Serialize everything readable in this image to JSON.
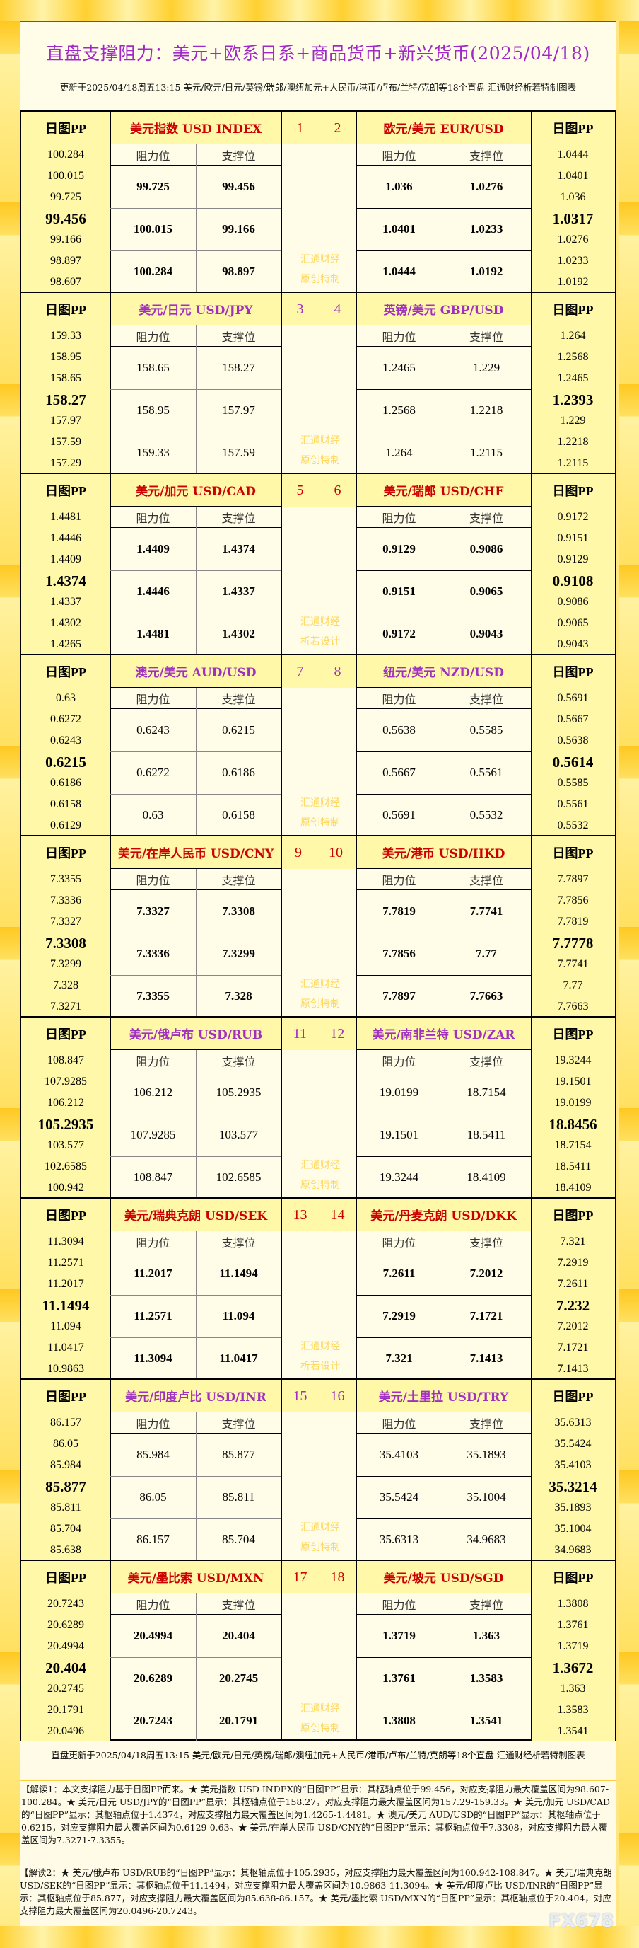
{
  "header": {
    "title": "直盘支撑阻力：美元+欧系日系+商品货币+新兴货币(2025/04/18)",
    "subtitle": "更新于2025/04/18周五13:15 美元/欧元/日元/英镑/瑞郎/澳纽加元+人民币/港币/卢布/兰特/克朗等18个直盘 汇通财经析若特制图表"
  },
  "labels": {
    "pp": "日图PP",
    "resistance": "阻力位",
    "support": "支撑位",
    "watermark_line1": "汇通财经"
  },
  "colors": {
    "odd_header": "#cc0000",
    "even_header": "#a030c0",
    "title": "#a028c8",
    "watermark": "#ffd860"
  },
  "blocks": [
    {
      "num_left": "1",
      "num_right": "2",
      "watermark_line2": "原创特制",
      "left": {
        "pair": "美元指数 USD INDEX",
        "pp": [
          "100.284",
          "100.015",
          "99.725",
          "99.456",
          "99.166",
          "98.897",
          "98.607"
        ],
        "rows": [
          [
            "99.725",
            "99.456"
          ],
          [
            "100.015",
            "99.166"
          ],
          [
            "100.284",
            "98.897"
          ]
        ]
      },
      "right": {
        "pair": "欧元/美元 EUR/USD",
        "pp": [
          "1.0444",
          "1.0401",
          "1.036",
          "1.0317",
          "1.0276",
          "1.0233",
          "1.0192"
        ],
        "rows": [
          [
            "1.036",
            "1.0276"
          ],
          [
            "1.0401",
            "1.0233"
          ],
          [
            "1.0444",
            "1.0192"
          ]
        ]
      }
    },
    {
      "num_left": "3",
      "num_right": "4",
      "watermark_line2": "原创特制",
      "left": {
        "pair": "美元/日元 USD/JPY",
        "pp": [
          "159.33",
          "158.95",
          "158.65",
          "158.27",
          "157.97",
          "157.59",
          "157.29"
        ],
        "rows": [
          [
            "158.65",
            "158.27"
          ],
          [
            "158.95",
            "157.97"
          ],
          [
            "159.33",
            "157.59"
          ]
        ]
      },
      "right": {
        "pair": "英镑/美元 GBP/USD",
        "pp": [
          "1.264",
          "1.2568",
          "1.2465",
          "1.2393",
          "1.229",
          "1.2218",
          "1.2115"
        ],
        "rows": [
          [
            "1.2465",
            "1.229"
          ],
          [
            "1.2568",
            "1.2218"
          ],
          [
            "1.264",
            "1.2115"
          ]
        ]
      }
    },
    {
      "num_left": "5",
      "num_right": "6",
      "watermark_line2": "析若设计",
      "left": {
        "pair": "美元/加元 USD/CAD",
        "pp": [
          "1.4481",
          "1.4446",
          "1.4409",
          "1.4374",
          "1.4337",
          "1.4302",
          "1.4265"
        ],
        "rows": [
          [
            "1.4409",
            "1.4374"
          ],
          [
            "1.4446",
            "1.4337"
          ],
          [
            "1.4481",
            "1.4302"
          ]
        ]
      },
      "right": {
        "pair": "美元/瑞郎 USD/CHF",
        "pp": [
          "0.9172",
          "0.9151",
          "0.9129",
          "0.9108",
          "0.9086",
          "0.9065",
          "0.9043"
        ],
        "rows": [
          [
            "0.9129",
            "0.9086"
          ],
          [
            "0.9151",
            "0.9065"
          ],
          [
            "0.9172",
            "0.9043"
          ]
        ]
      }
    },
    {
      "num_left": "7",
      "num_right": "8",
      "watermark_line2": "原创特制",
      "left": {
        "pair": "澳元/美元 AUD/USD",
        "pp": [
          "0.63",
          "0.6272",
          "0.6243",
          "0.6215",
          "0.6186",
          "0.6158",
          "0.6129"
        ],
        "rows": [
          [
            "0.6243",
            "0.6215"
          ],
          [
            "0.6272",
            "0.6186"
          ],
          [
            "0.63",
            "0.6158"
          ]
        ]
      },
      "right": {
        "pair": "纽元/美元 NZD/USD",
        "pp": [
          "0.5691",
          "0.5667",
          "0.5638",
          "0.5614",
          "0.5585",
          "0.5561",
          "0.5532"
        ],
        "rows": [
          [
            "0.5638",
            "0.5585"
          ],
          [
            "0.5667",
            "0.5561"
          ],
          [
            "0.5691",
            "0.5532"
          ]
        ]
      }
    },
    {
      "num_left": "9",
      "num_right": "10",
      "watermark_line2": "原创特制",
      "left": {
        "pair": "美元/在岸人民币 USD/CNY",
        "pp": [
          "7.3355",
          "7.3336",
          "7.3327",
          "7.3308",
          "7.3299",
          "7.328",
          "7.3271"
        ],
        "rows": [
          [
            "7.3327",
            "7.3308"
          ],
          [
            "7.3336",
            "7.3299"
          ],
          [
            "7.3355",
            "7.328"
          ]
        ]
      },
      "right": {
        "pair": "美元/港币 USD/HKD",
        "pp": [
          "7.7897",
          "7.7856",
          "7.7819",
          "7.7778",
          "7.7741",
          "7.77",
          "7.7663"
        ],
        "rows": [
          [
            "7.7819",
            "7.7741"
          ],
          [
            "7.7856",
            "7.77"
          ],
          [
            "7.7897",
            "7.7663"
          ]
        ]
      }
    },
    {
      "num_left": "11",
      "num_right": "12",
      "watermark_line2": "原创特制",
      "left": {
        "pair": "美元/俄卢布 USD/RUB",
        "pp": [
          "108.847",
          "107.9285",
          "106.212",
          "105.2935",
          "103.577",
          "102.6585",
          "100.942"
        ],
        "rows": [
          [
            "106.212",
            "105.2935"
          ],
          [
            "107.9285",
            "103.577"
          ],
          [
            "108.847",
            "102.6585"
          ]
        ]
      },
      "right": {
        "pair": "美元/南非兰特 USD/ZAR",
        "pp": [
          "19.3244",
          "19.1501",
          "19.0199",
          "18.8456",
          "18.7154",
          "18.5411",
          "18.4109"
        ],
        "rows": [
          [
            "19.0199",
            "18.7154"
          ],
          [
            "19.1501",
            "18.5411"
          ],
          [
            "19.3244",
            "18.4109"
          ]
        ]
      }
    },
    {
      "num_left": "13",
      "num_right": "14",
      "watermark_line2": "析若设计",
      "left": {
        "pair": "美元/瑞典克朗 USD/SEK",
        "pp": [
          "11.3094",
          "11.2571",
          "11.2017",
          "11.1494",
          "11.094",
          "11.0417",
          "10.9863"
        ],
        "rows": [
          [
            "11.2017",
            "11.1494"
          ],
          [
            "11.2571",
            "11.094"
          ],
          [
            "11.3094",
            "11.0417"
          ]
        ]
      },
      "right": {
        "pair": "美元/丹麦克朗 USD/DKK",
        "pp": [
          "7.321",
          "7.2919",
          "7.2611",
          "7.232",
          "7.2012",
          "7.1721",
          "7.1413"
        ],
        "rows": [
          [
            "7.2611",
            "7.2012"
          ],
          [
            "7.2919",
            "7.1721"
          ],
          [
            "7.321",
            "7.1413"
          ]
        ]
      }
    },
    {
      "num_left": "15",
      "num_right": "16",
      "watermark_line2": "原创特制",
      "left": {
        "pair": "美元/印度卢比 USD/INR",
        "pp": [
          "86.157",
          "86.05",
          "85.984",
          "85.877",
          "85.811",
          "85.704",
          "85.638"
        ],
        "rows": [
          [
            "85.984",
            "85.877"
          ],
          [
            "86.05",
            "85.811"
          ],
          [
            "86.157",
            "85.704"
          ]
        ]
      },
      "right": {
        "pair": "美元/土里拉 USD/TRY",
        "pp": [
          "35.6313",
          "35.5424",
          "35.4103",
          "35.3214",
          "35.1893",
          "35.1004",
          "34.9683"
        ],
        "rows": [
          [
            "35.4103",
            "35.1893"
          ],
          [
            "35.5424",
            "35.1004"
          ],
          [
            "35.6313",
            "34.9683"
          ]
        ]
      }
    },
    {
      "num_left": "17",
      "num_right": "18",
      "watermark_line2": "原创特制",
      "left": {
        "pair": "美元/墨比索 USD/MXN",
        "pp": [
          "20.7243",
          "20.6289",
          "20.4994",
          "20.404",
          "20.2745",
          "20.1791",
          "20.0496"
        ],
        "rows": [
          [
            "20.4994",
            "20.404"
          ],
          [
            "20.6289",
            "20.2745"
          ],
          [
            "20.7243",
            "20.1791"
          ]
        ]
      },
      "right": {
        "pair": "美元/坡元 USD/SGD",
        "pp": [
          "1.3808",
          "1.3761",
          "1.3719",
          "1.3672",
          "1.363",
          "1.3583",
          "1.3541"
        ],
        "rows": [
          [
            "1.3719",
            "1.363"
          ],
          [
            "1.3761",
            "1.3583"
          ],
          [
            "1.3808",
            "1.3541"
          ]
        ]
      }
    }
  ],
  "footer": {
    "update": "直盘更新于2025/04/18周五13:15 美元/欧元/日元/英镑/瑞郎/澳纽加元+人民币/港币/卢布/兰特/克朗等18个直盘 汇通财经析若特制图表",
    "note1": "【解读1：本文支撑阻力基于日图PP而来。★ 美元指数 USD INDEX的“日图PP”显示：其枢轴点位于99.456，对应支撑阻力最大覆盖区间为98.607-100.284。★ 美元/日元 USD/JPY的“日图PP”显示：其枢轴点位于158.27，对应支撑阻力最大覆盖区间为157.29-159.33。★ 美元/加元 USD/CAD的“日图PP”显示：其枢轴点位于1.4374，对应支撑阻力最大覆盖区间为1.4265-1.4481。★ 澳元/美元 AUD/USD的“日图PP”显示：其枢轴点位于0.6215，对应支撑阻力最大覆盖区间为0.6129-0.63。★ 美元/在岸人民币 USD/CNY的“日图PP”显示：其枢轴点位于7.3308，对应支撑阻力最大覆盖区间为7.3271-7.3355。",
    "note2": "【解读2：★ 美元/俄卢布 USD/RUB的“日图PP”显示：其枢轴点位于105.2935，对应支撑阻力最大覆盖区间为100.942-108.847。★ 美元/瑞典克朗 USD/SEK的“日图PP”显示：其枢轴点位于11.1494，对应支撑阻力最大覆盖区间为10.9863-11.3094。★ 美元/印度卢比 USD/INR的“日图PP”显示：其枢轴点位于85.877，对应支撑阻力最大覆盖区间为85.638-86.157。★ 美元/墨比索 USD/MXN的“日图PP”显示：其枢轴点位于20.404，对应支撑阻力最大覆盖区间为20.0496-20.7243。",
    "logo": "FX678"
  }
}
